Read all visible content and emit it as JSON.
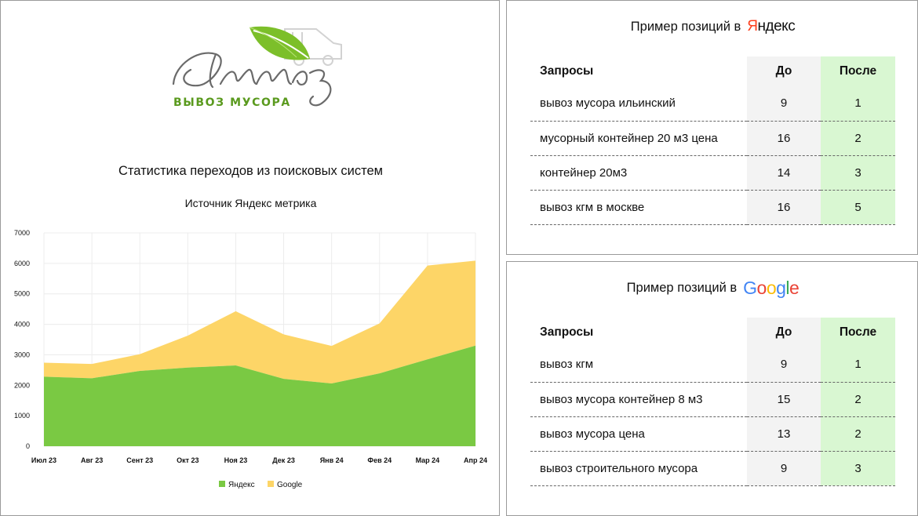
{
  "logo": {
    "script_text": "Алмаз",
    "tagline": "ВЫВОЗ МУСОРА",
    "leaf_color": "#7cbf2a"
  },
  "chart_title": "Статистика переходов из поисковых систем",
  "chart_subtitle": "Источник Яндекс метрика",
  "chart_data": {
    "type": "area",
    "stacked": true,
    "categories": [
      "Июл 23",
      "Авг 23",
      "Сент 23",
      "Окт 23",
      "Ноя 23",
      "Дек 23",
      "Янв 24",
      "Фев 24",
      "Мар 24",
      "Апр 24"
    ],
    "series": [
      {
        "name": "Яндекс",
        "color": "#7ac943",
        "values": [
          2280,
          2230,
          2470,
          2580,
          2650,
          2210,
          2060,
          2390,
          2850,
          3300
        ]
      },
      {
        "name": "Google",
        "color": "#fdd567",
        "values": [
          460,
          470,
          550,
          1050,
          1780,
          1460,
          1230,
          1640,
          3080,
          2790
        ]
      }
    ],
    "ylim": [
      0,
      7000
    ],
    "yticks": [
      0,
      1000,
      2000,
      3000,
      4000,
      5000,
      6000,
      7000
    ],
    "grid": true,
    "legend": "bottom"
  },
  "yandex": {
    "header_text": "Пример позиций в",
    "brand_first": "Я",
    "brand_rest": "ндекс",
    "brand_color": "#fc3f1d",
    "columns": [
      "Запросы",
      "До",
      "После"
    ],
    "rows": [
      {
        "query": "вывоз мусора ильинский",
        "before": "9",
        "after": "1"
      },
      {
        "query": "мусорный контейнер 20 м3 цена",
        "before": "16",
        "after": "2"
      },
      {
        "query": "контейнер 20м3",
        "before": "14",
        "after": "3"
      },
      {
        "query": "вывоз кгм в москве",
        "before": "16",
        "after": "5"
      }
    ]
  },
  "google": {
    "header_text": "Пример позиций в",
    "brand_letters": [
      "G",
      "o",
      "o",
      "g",
      "l",
      "e"
    ],
    "brand_colors": [
      "#4285f4",
      "#ea4335",
      "#fbbc05",
      "#4285f4",
      "#34a853",
      "#ea4335"
    ],
    "columns": [
      "Запросы",
      "До",
      "После"
    ],
    "rows": [
      {
        "query": "вывоз кгм",
        "before": "9",
        "after": "1"
      },
      {
        "query": "вывоз мусора контейнер 8 м3",
        "before": "15",
        "after": "2"
      },
      {
        "query": "вывоз мусора цена",
        "before": "13",
        "after": "2"
      },
      {
        "query": "вывоз строительного мусора",
        "before": "9",
        "after": "3"
      }
    ]
  },
  "colors": {
    "table_before_bg": "#f3f3f3",
    "table_after_bg": "#d9f7d2"
  }
}
